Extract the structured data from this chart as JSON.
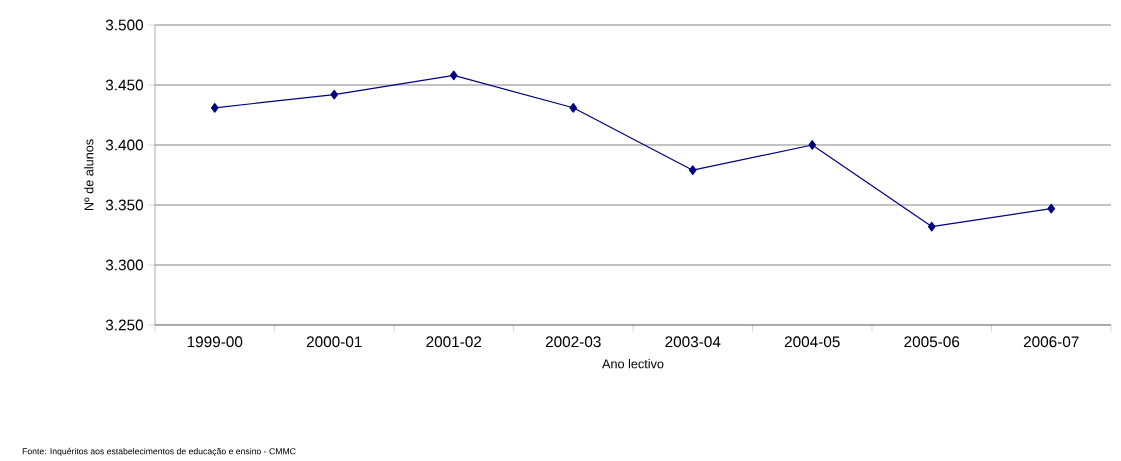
{
  "chart_data": {
    "type": "line",
    "xlabel": "Ano lectivo",
    "ylabel": "Nº de alunos",
    "categories": [
      "1999-00",
      "2000-01",
      "2001-02",
      "2002-03",
      "2003-04",
      "2004-05",
      "2005-06",
      "2006-07"
    ],
    "series": [
      {
        "color": "#000080",
        "values": [
          3431,
          3442,
          3458,
          3431,
          3379,
          3400,
          3332,
          3347
        ]
      }
    ],
    "ylim": [
      3250,
      3500
    ],
    "yticks": [
      {
        "value": 3250,
        "label": "3.250"
      },
      {
        "value": 3300,
        "label": "3.300"
      },
      {
        "value": 3350,
        "label": "3.350"
      },
      {
        "value": 3400,
        "label": "3.400"
      },
      {
        "value": 3450,
        "label": "3.450"
      },
      {
        "value": 3500,
        "label": "3.500"
      }
    ],
    "grid": "y",
    "legend": false,
    "marker": "diamond",
    "line_style": "solid",
    "annotations": [
      "Fonte: Inquéritos aos estabelecimentos de educação e ensino - CMMC"
    ]
  }
}
